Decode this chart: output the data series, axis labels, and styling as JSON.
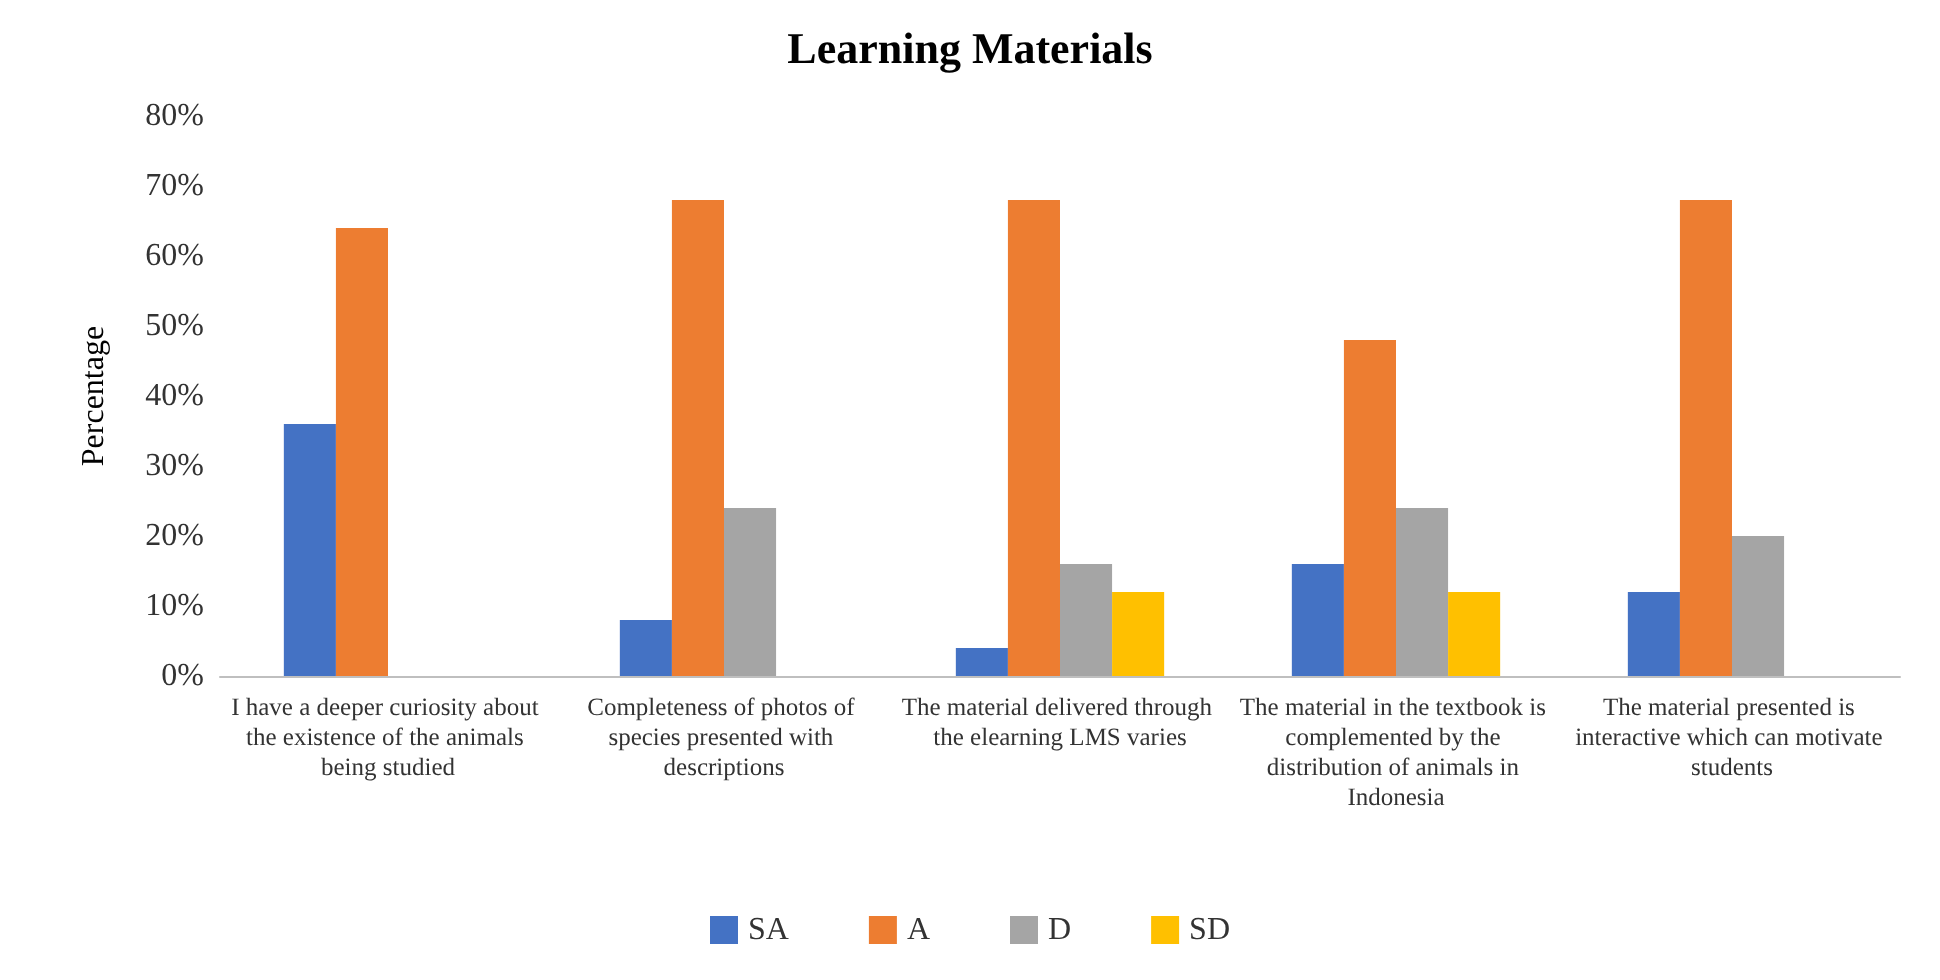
{
  "chart_data": {
    "type": "bar",
    "title": "Learning Materials",
    "ylabel": "Percentage",
    "categories": [
      "I have a deeper curiosity about the existence of the animals being studied",
      "Completeness of photos of species presented with descriptions",
      "The material delivered through the elearning LMS varies",
      "The material in the textbook is complemented by the distribution of animals in Indonesia",
      "The material presented is interactive which can motivate students"
    ],
    "series": [
      {
        "name": "SA",
        "color": "#4472c4",
        "values": [
          36,
          8,
          4,
          16,
          12
        ]
      },
      {
        "name": "A",
        "color": "#ed7d31",
        "values": [
          64,
          68,
          68,
          48,
          68
        ]
      },
      {
        "name": "D",
        "color": "#a5a5a5",
        "values": [
          0,
          24,
          16,
          24,
          20
        ]
      },
      {
        "name": "SD",
        "color": "#ffc000",
        "values": [
          0,
          0,
          12,
          12,
          0
        ]
      }
    ],
    "ylim": [
      0,
      80
    ],
    "yticks": [
      {
        "value": 0,
        "label": "0%"
      },
      {
        "value": 10,
        "label": "10%"
      },
      {
        "value": 20,
        "label": "20%"
      },
      {
        "value": 30,
        "label": "30%"
      },
      {
        "value": 40,
        "label": "40%"
      },
      {
        "value": 50,
        "label": "50%"
      },
      {
        "value": 60,
        "label": "60%"
      },
      {
        "value": 70,
        "label": "70%"
      },
      {
        "value": 80,
        "label": "80%"
      }
    ],
    "grid": false,
    "legend": "bottom"
  }
}
